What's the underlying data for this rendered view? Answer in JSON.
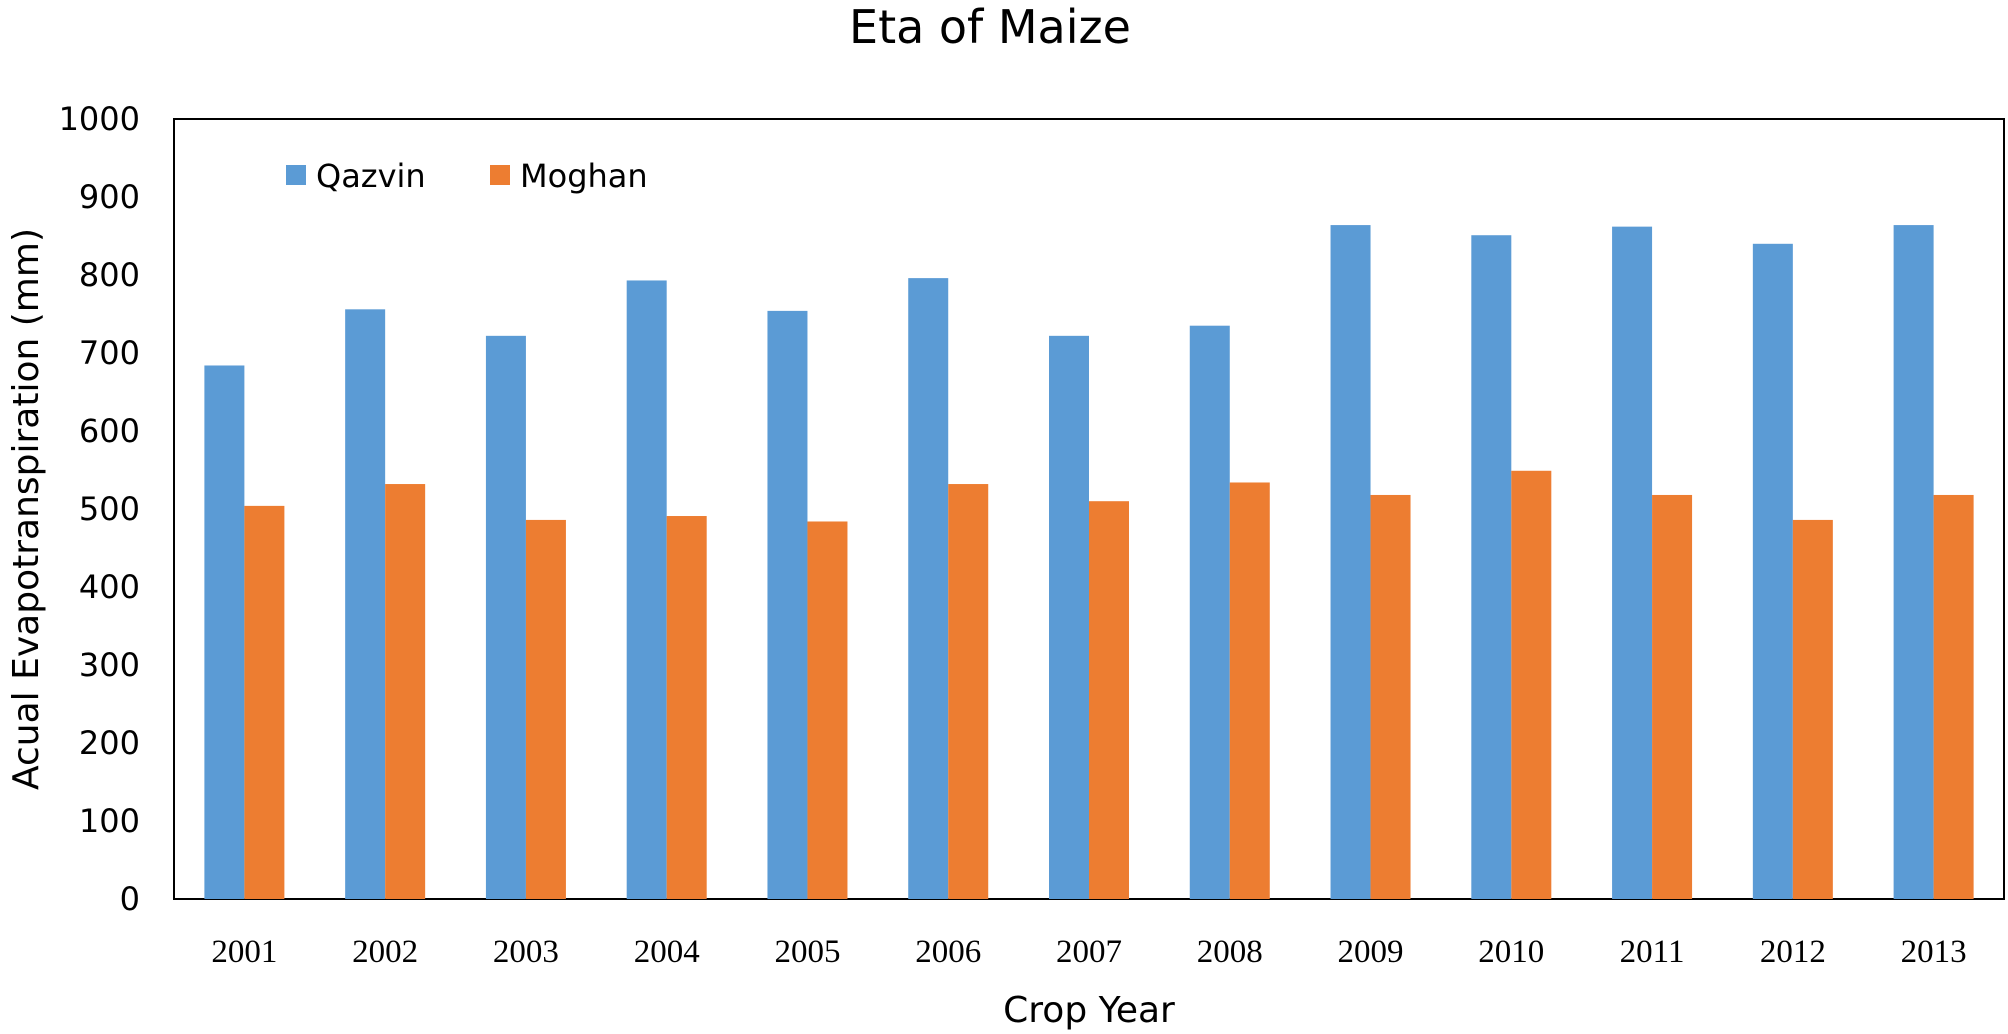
{
  "chart_data": {
    "type": "bar",
    "title": "Eta of Maize",
    "xlabel": "Crop Year",
    "ylabel": "Acual Evapotranspiration (mm)",
    "categories": [
      "2001",
      "2002",
      "2003",
      "2004",
      "2005",
      "2006",
      "2007",
      "2008",
      "2009",
      "2010",
      "2011",
      "2012",
      "2013"
    ],
    "series": [
      {
        "name": "Qazvin",
        "color": "#5b9bd5",
        "values": [
          684,
          756,
          722,
          793,
          754,
          796,
          722,
          735,
          864,
          851,
          862,
          840,
          864
        ]
      },
      {
        "name": "Moghan",
        "color": "#ed7d31",
        "values": [
          504,
          532,
          486,
          491,
          484,
          532,
          510,
          534,
          518,
          549,
          518,
          486,
          518
        ]
      }
    ],
    "ylim": [
      0,
      1000
    ],
    "yticks": [
      "0",
      "100",
      "200",
      "300",
      "400",
      "500",
      "600",
      "700",
      "800",
      "900",
      "1000"
    ],
    "grid": false,
    "legend_position": "top-left"
  }
}
